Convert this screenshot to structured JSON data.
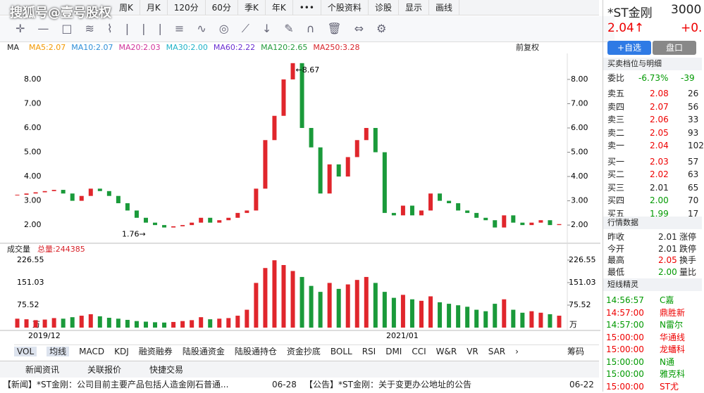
{
  "watermark": "搜狐号@壹号股权",
  "toolbar": {
    "tabs": [
      "周K",
      "月K",
      "120分",
      "60分",
      "季K",
      "年K",
      "•••",
      "个股资料",
      "诊股",
      "显示",
      "画线"
    ]
  },
  "ma_header": {
    "label": "MA",
    "items": [
      {
        "text": "MA5:2.07",
        "color": "#f39800"
      },
      {
        "text": "MA10:2.07",
        "color": "#2f8fd8"
      },
      {
        "text": "MA20:2.03",
        "color": "#d0339a"
      },
      {
        "text": "MA30:2.00",
        "color": "#1fb3c9"
      },
      {
        "text": "MA60:2.22",
        "color": "#6a2fd1"
      },
      {
        "text": "MA120:2.65",
        "color": "#239b3b"
      },
      {
        "text": "MA250:3.28",
        "color": "#d8232a"
      }
    ],
    "adjust": "前复权"
  },
  "price_chart": {
    "ylim": [
      1.28,
      9.07
    ],
    "yticks": [
      {
        "value": 8,
        "label": "8.00"
      },
      {
        "value": 7,
        "label": "7.00"
      },
      {
        "value": 6,
        "label": "6.00"
      },
      {
        "value": 5,
        "label": "5.00"
      },
      {
        "value": 4,
        "label": "4.00"
      },
      {
        "value": 3,
        "label": "3.00"
      },
      {
        "value": 2,
        "label": "2.00"
      }
    ],
    "closes": [
      3.25,
      3.3,
      3.35,
      3.4,
      3.45,
      3.3,
      3.0,
      3.2,
      3.5,
      3.4,
      3.2,
      2.9,
      2.6,
      2.3,
      2.1,
      2.0,
      1.9,
      1.95,
      2.0,
      2.1,
      2.3,
      2.1,
      2.2,
      2.3,
      2.5,
      2.6,
      3.5,
      5.5,
      6.5,
      8.0,
      8.67,
      6.0,
      5.2,
      3.3,
      4.5,
      4.0,
      4.8,
      5.5,
      6.0,
      5.0,
      2.5,
      2.4,
      2.8,
      2.4,
      2.6,
      3.3,
      3.0,
      2.9,
      2.6,
      2.5,
      2.3,
      2.2,
      1.9,
      2.4,
      2.1,
      2.0,
      2.1,
      2.2,
      2.0,
      2.04
    ],
    "high_label": "←8.67",
    "low_label": "1.76→"
  },
  "volume_chart": {
    "title": "成交量",
    "total": "总量:244385",
    "ylim": [
      0,
      243
    ],
    "yticks": [
      {
        "value": 226.55,
        "label": "226.55"
      },
      {
        "value": 151.03,
        "label": "151.03"
      },
      {
        "value": 75.52,
        "label": "75.52"
      }
    ],
    "unit": "万",
    "values": [
      30,
      28,
      25,
      27,
      32,
      30,
      35,
      40,
      45,
      38,
      33,
      30,
      26,
      22,
      20,
      18,
      17,
      19,
      22,
      25,
      35,
      28,
      30,
      32,
      40,
      60,
      150,
      200,
      226,
      210,
      190,
      170,
      140,
      120,
      150,
      130,
      145,
      160,
      170,
      150,
      120,
      100,
      110,
      95,
      90,
      105,
      85,
      80,
      75,
      70,
      60,
      55,
      80,
      95,
      60,
      50,
      55,
      50,
      45,
      40
    ]
  },
  "dates": [
    "2019/12",
    "2021/01"
  ],
  "indicator_tabs": [
    "VOL",
    "均线",
    "MACD",
    "KDJ",
    "融资融券",
    "陆股通资金",
    "陆股通持仓",
    "资金抄底",
    "BOLL",
    "RSI",
    "DMI",
    "CCI",
    "W&R",
    "VR",
    "SAR",
    "›"
  ],
  "chip": "筹码",
  "bottom_tabs": [
    "新闻资讯",
    "关联报价",
    "快捷交易"
  ],
  "news": [
    {
      "text": "【新闻】*ST金刚：公司目前主要产品包括人造金刚石普通...",
      "date": "06-28"
    },
    {
      "text": "【公告】*ST金刚：关于变更办公地址的公告",
      "date": "06-22"
    }
  ],
  "quote": {
    "name": "*ST金刚",
    "code": "3000",
    "price": "2.04↑",
    "change": "+0.",
    "buttons": [
      "+自选",
      "盘口"
    ],
    "book_title": "买卖档位与明细",
    "ratio": [
      "委比",
      "-6.73%",
      "-39"
    ],
    "book": [
      {
        "label": "卖五",
        "price": "2.08",
        "vol": "26",
        "color": "#e00"
      },
      {
        "label": "卖四",
        "price": "2.07",
        "vol": "56",
        "color": "#e00"
      },
      {
        "label": "卖三",
        "price": "2.06",
        "vol": "33",
        "color": "#e00"
      },
      {
        "label": "卖二",
        "price": "2.05",
        "vol": "93",
        "color": "#e00"
      },
      {
        "label": "卖一",
        "price": "2.04",
        "vol": "102",
        "color": "#e00"
      },
      {
        "label": "买一",
        "price": "2.03",
        "vol": "57",
        "color": "#e00"
      },
      {
        "label": "买二",
        "price": "2.02",
        "vol": "63",
        "color": "#e00"
      },
      {
        "label": "买三",
        "price": "2.01",
        "vol": "65",
        "color": "#222"
      },
      {
        "label": "买四",
        "price": "2.00",
        "vol": "70",
        "color": "#090"
      },
      {
        "label": "买五",
        "price": "1.99",
        "vol": "17",
        "color": "#090"
      }
    ],
    "stats_title": "行情数据",
    "stats": [
      {
        "label": "昨收",
        "value": "2.01",
        "tail": "涨停",
        "color": "#222"
      },
      {
        "label": "今开",
        "value": "2.01",
        "tail": "跌停",
        "color": "#222"
      },
      {
        "label": "最高",
        "value": "2.05",
        "tail": "换手",
        "color": "#e00"
      },
      {
        "label": "最低",
        "value": "2.00",
        "tail": "量比",
        "color": "#090"
      }
    ],
    "elf_title": "短线精灵",
    "elf": [
      {
        "time": "14:56:57",
        "name": "C嘉",
        "color": "#090"
      },
      {
        "time": "14:57:00",
        "name": "鼎胜新",
        "color": "#e00"
      },
      {
        "time": "14:57:00",
        "name": "N雷尔",
        "color": "#090"
      },
      {
        "time": "15:00:00",
        "name": "华通线",
        "color": "#e00"
      },
      {
        "time": "15:00:00",
        "name": "龙蟠科",
        "color": "#e00"
      },
      {
        "time": "15:00:00",
        "name": "N通",
        "color": "#090"
      },
      {
        "time": "15:00:00",
        "name": "雅克科",
        "color": "#090"
      },
      {
        "time": "15:00:00",
        "name": "ST尤",
        "color": "#e00"
      }
    ]
  }
}
